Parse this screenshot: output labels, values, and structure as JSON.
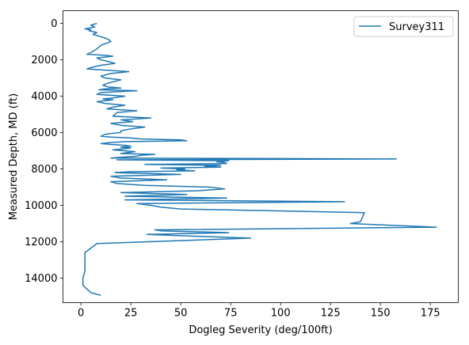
{
  "chart_data": {
    "type": "line",
    "xlabel": "Dogleg Severity (deg/100ft)",
    "ylabel": "Measured Depth, MD (ft)",
    "xlim": [
      -9,
      189
    ],
    "ylim": [
      15350,
      -700
    ],
    "y_inverted": true,
    "xticks": [
      0,
      25,
      50,
      75,
      100,
      125,
      150,
      175
    ],
    "yticks": [
      0,
      2000,
      4000,
      6000,
      8000,
      10000,
      12000,
      14000
    ],
    "grid": false,
    "legend_position": "top-right",
    "colors": {
      "series": "#1f77b4"
    },
    "series": [
      {
        "name": "Survey311",
        "x": [
          8,
          5,
          7,
          2,
          5,
          4,
          8,
          6,
          9,
          12,
          14,
          15,
          10,
          8,
          5,
          3,
          12,
          16,
          8,
          10,
          14,
          17,
          10,
          6,
          3,
          24,
          15,
          10,
          12,
          20,
          13,
          11,
          14,
          20,
          12,
          9,
          28,
          10,
          8,
          22,
          16,
          11,
          16,
          8,
          12,
          22,
          16,
          13,
          28,
          18,
          17,
          16,
          35,
          20,
          26,
          20,
          15,
          20,
          32,
          25,
          20,
          20,
          15,
          12,
          10,
          15,
          25,
          30,
          50,
          53,
          22,
          15,
          10,
          15,
          22,
          25,
          20,
          25,
          16,
          27,
          20,
          37,
          30,
          28,
          15,
          158,
          18,
          74,
          68,
          72,
          73,
          32,
          70,
          62,
          70,
          40,
          52,
          48,
          57,
          25,
          17,
          50,
          15,
          20,
          43,
          15,
          18,
          32,
          65,
          72,
          58,
          20,
          53,
          22,
          73,
          22,
          132,
          28,
          35,
          40,
          50,
          142,
          140,
          135,
          178,
          37,
          40,
          74,
          33,
          58,
          85,
          8,
          2,
          2,
          1,
          1,
          5,
          10
        ],
        "y": [
          0,
          100,
          200,
          300,
          350,
          400,
          500,
          600,
          700,
          800,
          900,
          1000,
          1200,
          1400,
          1600,
          1700,
          1750,
          1800,
          1900,
          2000,
          2100,
          2200,
          2300,
          2400,
          2500,
          2650,
          2750,
          2900,
          3000,
          3100,
          3300,
          3400,
          3500,
          3550,
          3600,
          3650,
          3700,
          3800,
          3900,
          4000,
          4100,
          4150,
          4200,
          4300,
          4400,
          4500,
          4600,
          4700,
          4800,
          4900,
          5000,
          5100,
          5200,
          5300,
          5400,
          5450,
          5500,
          5600,
          5700,
          5800,
          5900,
          6000,
          6050,
          6100,
          6200,
          6250,
          6300,
          6350,
          6400,
          6450,
          6500,
          6550,
          6600,
          6650,
          6700,
          6750,
          6800,
          6850,
          6950,
          7050,
          7150,
          7200,
          7250,
          7300,
          7400,
          7450,
          7500,
          7550,
          7600,
          7650,
          7700,
          7750,
          7800,
          7850,
          7900,
          7950,
          8000,
          8050,
          8100,
          8150,
          8200,
          8300,
          8400,
          8500,
          8600,
          8700,
          8800,
          8900,
          9000,
          9100,
          9200,
          9300,
          9400,
          9500,
          9600,
          9700,
          9800,
          9900,
          10000,
          10100,
          10200,
          10400,
          10900,
          11000,
          11200,
          11350,
          11400,
          11500,
          11600,
          11700,
          11800,
          12100,
          12600,
          13600,
          14000,
          14400,
          14800,
          14950
        ]
      }
    ]
  }
}
